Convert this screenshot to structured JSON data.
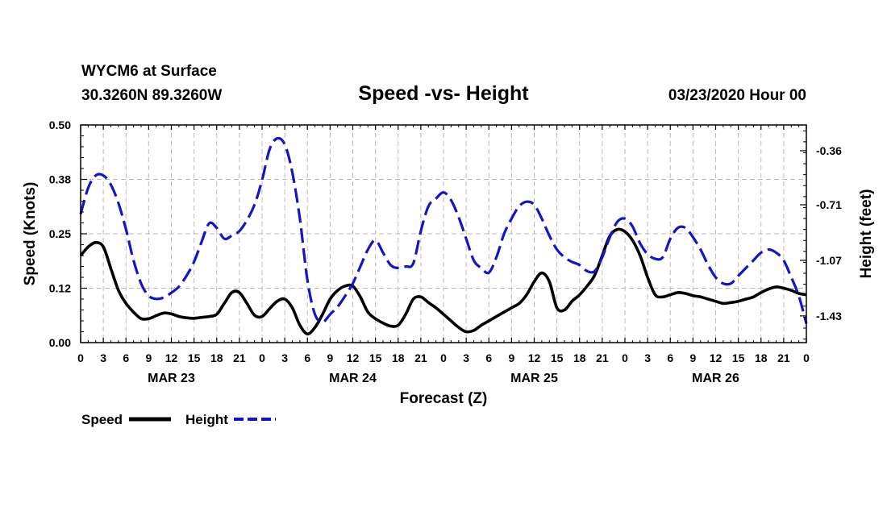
{
  "header": {
    "station": "WYCM6 at Surface",
    "coords": "30.3260N 89.3260W",
    "date": "03/23/2020 Hour 00"
  },
  "colors": {
    "speed": "#000000",
    "height": "#1414c8",
    "grid": "#bbbbbb"
  },
  "chart_data": {
    "type": "line",
    "title": "Speed -vs- Height",
    "xlabel": "Forecast (Z)",
    "ylabel": "Speed (Knots)",
    "y2label": "Height (feet)",
    "xlim": [
      0,
      96
    ],
    "ylim": [
      0,
      0.5
    ],
    "y2lim": [
      -1.603,
      -0.193
    ],
    "x_ticks": [
      0,
      3,
      6,
      9,
      12,
      15,
      18,
      21,
      24,
      27,
      30,
      33,
      36,
      39,
      42,
      45,
      48,
      51,
      54,
      57,
      60,
      63,
      66,
      69,
      72,
      75,
      78,
      81,
      84,
      87,
      90,
      93,
      96
    ],
    "x_tick_labels": [
      "0",
      "3",
      "6",
      "9",
      "12",
      "15",
      "18",
      "21",
      "0",
      "3",
      "6",
      "9",
      "12",
      "15",
      "18",
      "21",
      "0",
      "3",
      "6",
      "9",
      "12",
      "15",
      "18",
      "21",
      "0",
      "3",
      "6",
      "9",
      "12",
      "15",
      "18",
      "21",
      "0"
    ],
    "y_ticks": [
      0.0,
      0.125,
      0.25,
      0.375,
      0.5
    ],
    "y_tick_labels": [
      "0.00",
      "0.12",
      "0.25",
      "0.38",
      "0.50"
    ],
    "y2_ticks": [
      -1.43,
      -1.07,
      -0.71,
      -0.36
    ],
    "y2_tick_labels": [
      "-1.43",
      "-1.07",
      "-0.71",
      "-0.36"
    ],
    "day_labels": [
      {
        "x": 12,
        "label": "MAR 23"
      },
      {
        "x": 36,
        "label": "MAR 24"
      },
      {
        "x": 60,
        "label": "MAR 25"
      },
      {
        "x": 84,
        "label": "MAR 26"
      }
    ],
    "series": [
      {
        "name": "Speed",
        "axis": "left",
        "style": "solid",
        "x": [
          0,
          1,
          2,
          3,
          4,
          5,
          6,
          7,
          8,
          9,
          10,
          11,
          12,
          13,
          14,
          15,
          16,
          17,
          18,
          19,
          20,
          21,
          22,
          23,
          24,
          25,
          26,
          27,
          28,
          29,
          30,
          31,
          32,
          33,
          34,
          35,
          36,
          37,
          38,
          39,
          40,
          41,
          42,
          43,
          44,
          45,
          46,
          47,
          48,
          49,
          50,
          51,
          52,
          53,
          54,
          55,
          56,
          57,
          58,
          59,
          60,
          61,
          62,
          63,
          64,
          65,
          66,
          67,
          68,
          69,
          70,
          71,
          72,
          73,
          74,
          75,
          76,
          77,
          78,
          79,
          80,
          81,
          82,
          83,
          84,
          85,
          86,
          87,
          88,
          89,
          90,
          91,
          92,
          93,
          94,
          95,
          96
        ],
        "values": [
          0.2,
          0.22,
          0.23,
          0.22,
          0.17,
          0.12,
          0.09,
          0.07,
          0.055,
          0.055,
          0.062,
          0.068,
          0.066,
          0.06,
          0.057,
          0.056,
          0.058,
          0.06,
          0.065,
          0.09,
          0.115,
          0.115,
          0.09,
          0.063,
          0.06,
          0.078,
          0.095,
          0.1,
          0.08,
          0.04,
          0.02,
          0.035,
          0.065,
          0.1,
          0.12,
          0.13,
          0.13,
          0.105,
          0.07,
          0.055,
          0.045,
          0.038,
          0.04,
          0.065,
          0.1,
          0.105,
          0.092,
          0.08,
          0.065,
          0.05,
          0.035,
          0.025,
          0.028,
          0.04,
          0.05,
          0.06,
          0.07,
          0.08,
          0.09,
          0.11,
          0.14,
          0.16,
          0.14,
          0.08,
          0.075,
          0.095,
          0.11,
          0.13,
          0.155,
          0.2,
          0.245,
          0.26,
          0.255,
          0.235,
          0.2,
          0.15,
          0.11,
          0.105,
          0.11,
          0.115,
          0.113,
          0.108,
          0.105,
          0.1,
          0.095,
          0.09,
          0.092,
          0.095,
          0.1,
          0.105,
          0.115,
          0.123,
          0.128,
          0.125,
          0.12,
          0.113,
          0.11
        ]
      },
      {
        "name": "Height",
        "axis": "right",
        "style": "dashed",
        "x": [
          0,
          1,
          2,
          3,
          4,
          5,
          6,
          7,
          8,
          9,
          10,
          11,
          12,
          13,
          14,
          15,
          16,
          17,
          18,
          19,
          20,
          21,
          22,
          23,
          24,
          25,
          26,
          27,
          28,
          29,
          30,
          31,
          32,
          33,
          34,
          35,
          36,
          37,
          38,
          39,
          40,
          41,
          42,
          43,
          44,
          45,
          46,
          47,
          48,
          49,
          50,
          51,
          52,
          53,
          54,
          55,
          56,
          57,
          58,
          59,
          60,
          61,
          62,
          63,
          64,
          65,
          66,
          67,
          68,
          69,
          70,
          71,
          72,
          73,
          74,
          75,
          76,
          77,
          78,
          79,
          80,
          81,
          82,
          83,
          84,
          85,
          86,
          87,
          88,
          89,
          90,
          91,
          92,
          93,
          94,
          95,
          96
        ],
        "values": [
          -0.77,
          -0.6,
          -0.52,
          -0.52,
          -0.58,
          -0.7,
          -0.87,
          -1.07,
          -1.22,
          -1.3,
          -1.32,
          -1.31,
          -1.28,
          -1.24,
          -1.17,
          -1.08,
          -0.95,
          -0.83,
          -0.86,
          -0.93,
          -0.91,
          -0.88,
          -0.81,
          -0.71,
          -0.55,
          -0.35,
          -0.28,
          -0.32,
          -0.5,
          -0.8,
          -1.2,
          -1.42,
          -1.47,
          -1.42,
          -1.37,
          -1.3,
          -1.22,
          -1.11,
          -1.0,
          -0.94,
          -1.02,
          -1.1,
          -1.12,
          -1.11,
          -1.09,
          -0.88,
          -0.72,
          -0.67,
          -0.63,
          -0.68,
          -0.79,
          -0.93,
          -1.07,
          -1.12,
          -1.15,
          -1.05,
          -0.9,
          -0.8,
          -0.72,
          -0.69,
          -0.71,
          -0.8,
          -0.91,
          -1.0,
          -1.05,
          -1.08,
          -1.1,
          -1.14,
          -1.14,
          -1.05,
          -0.92,
          -0.82,
          -0.8,
          -0.85,
          -0.96,
          -1.03,
          -1.06,
          -1.05,
          -0.93,
          -0.86,
          -0.86,
          -0.92,
          -1.0,
          -1.1,
          -1.18,
          -1.22,
          -1.22,
          -1.17,
          -1.12,
          -1.07,
          -1.02,
          -1.0,
          -1.02,
          -1.07,
          -1.18,
          -1.3,
          -1.48
        ]
      }
    ]
  },
  "legend": {
    "speed_label": "Speed",
    "height_label": "Height"
  }
}
